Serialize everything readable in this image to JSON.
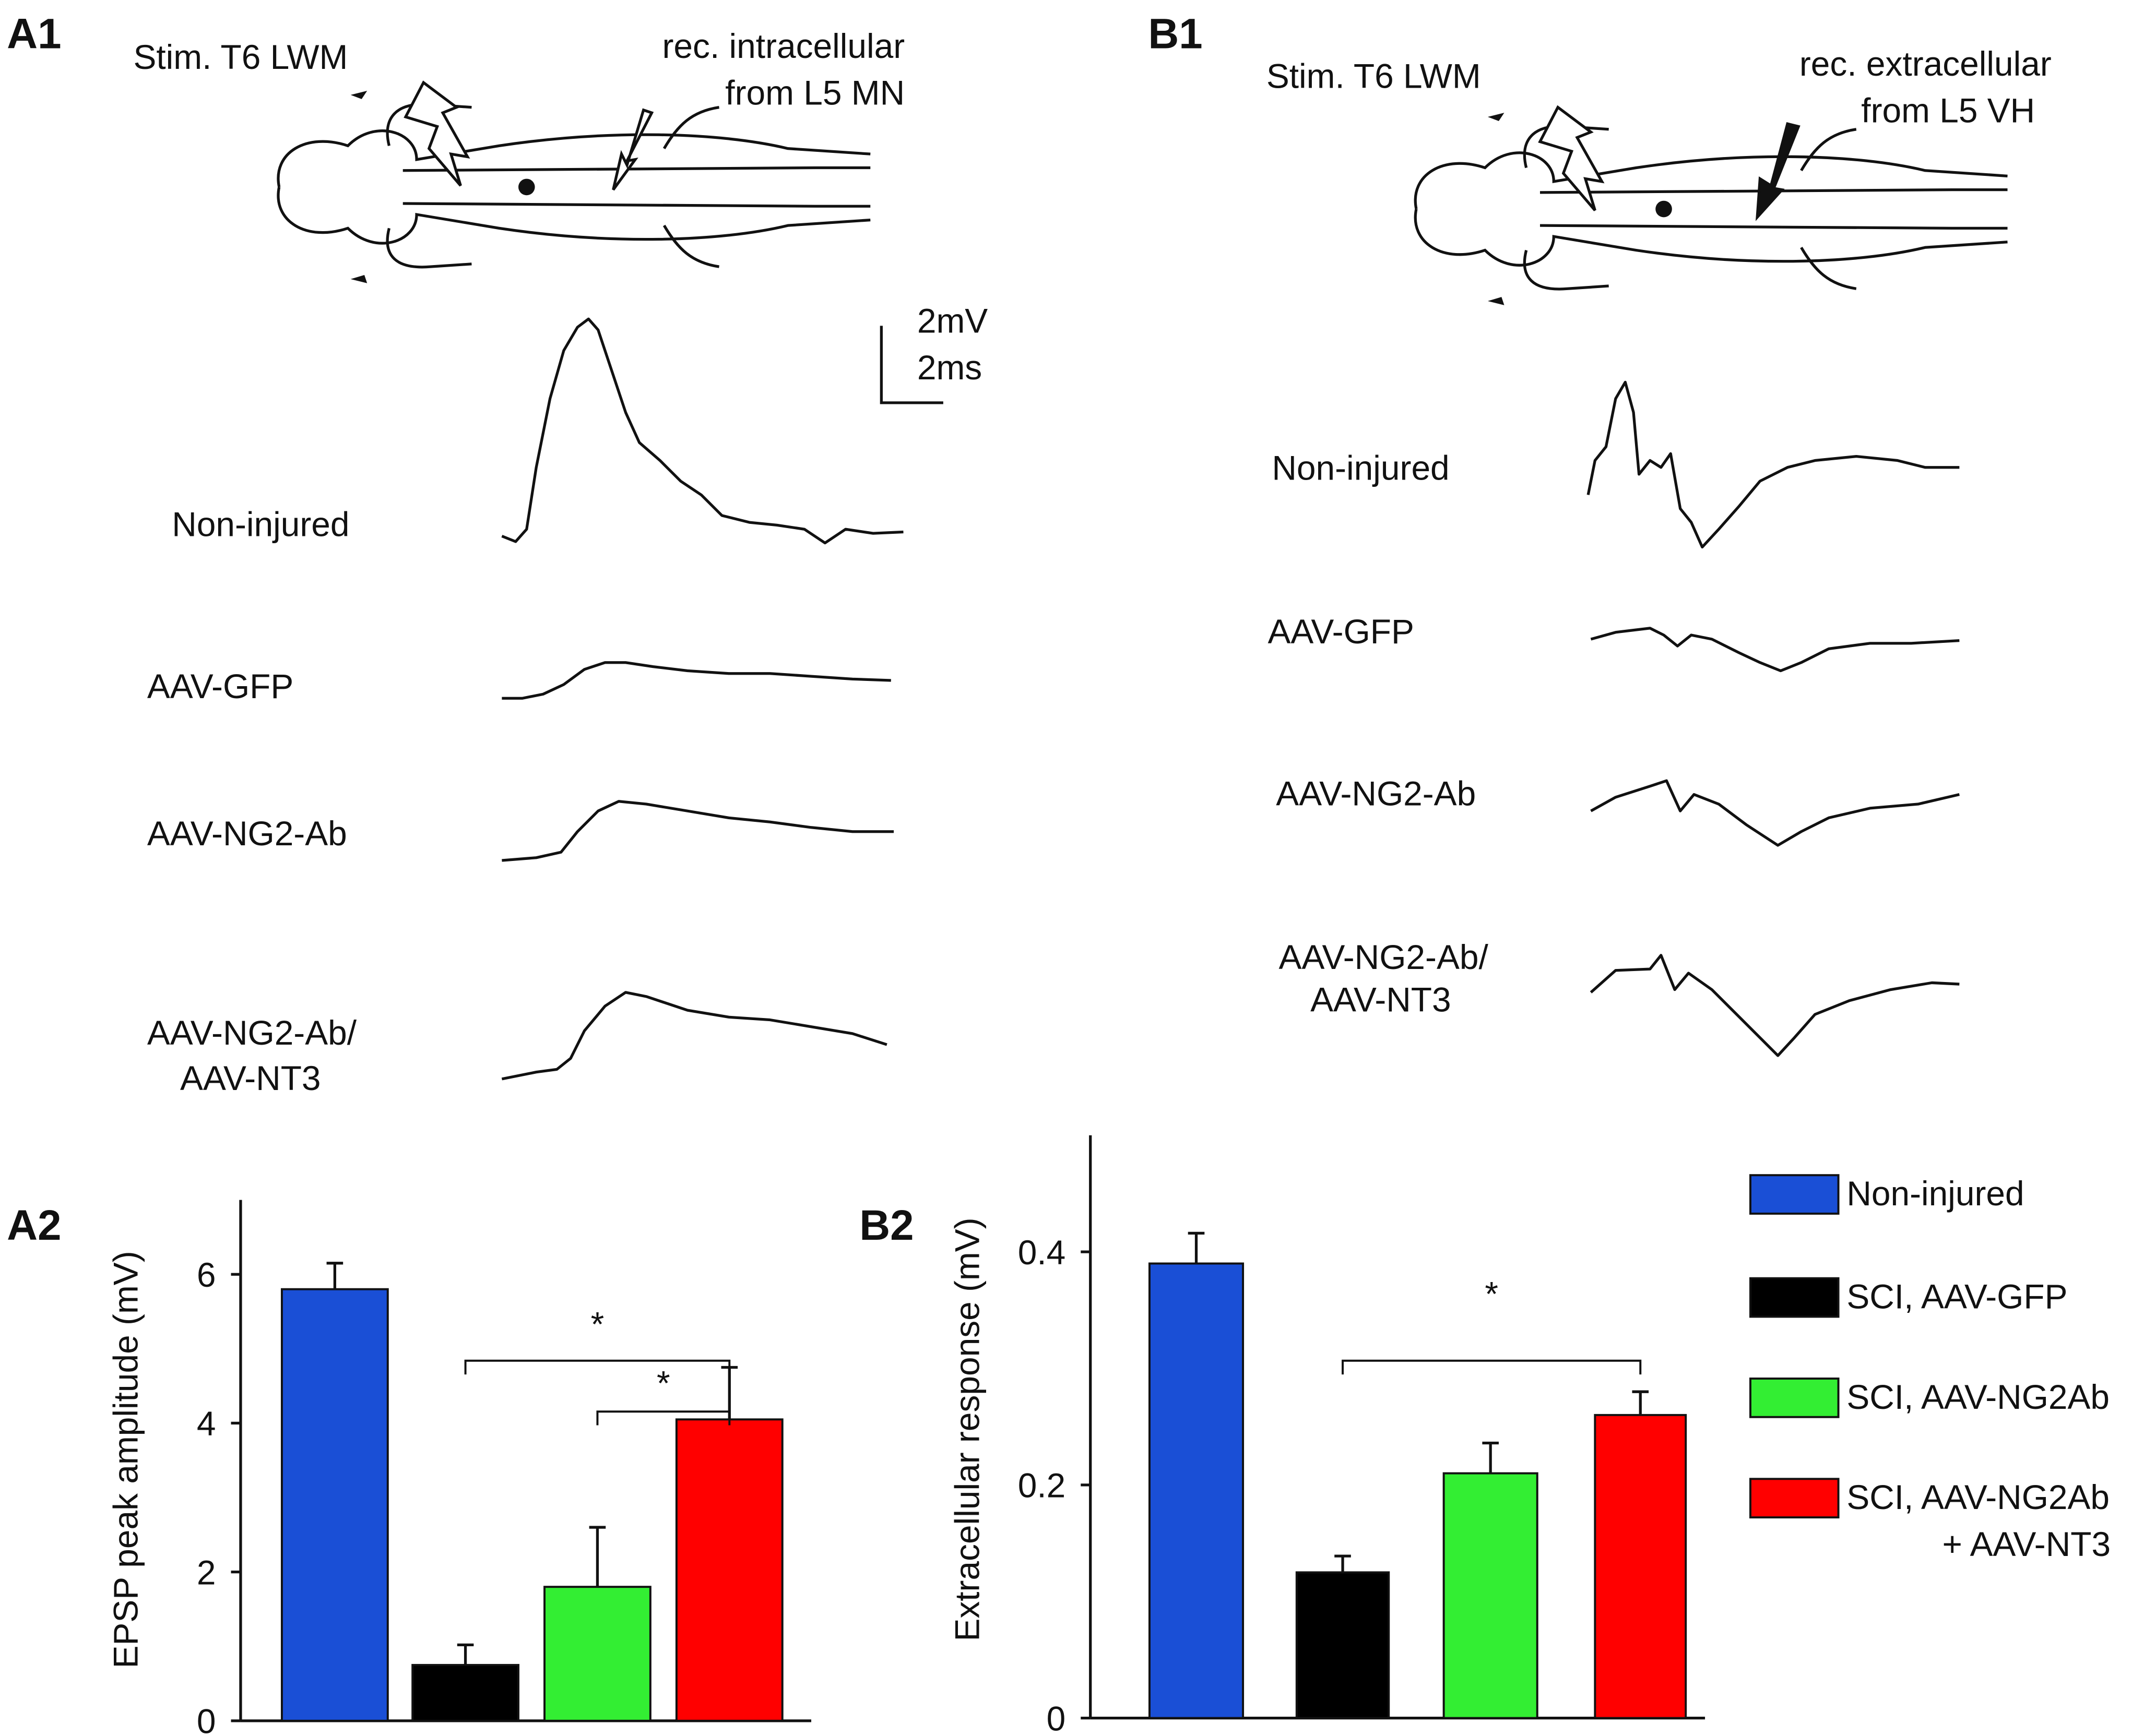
{
  "panels": {
    "a1": "A1",
    "b1": "B1",
    "a2": "A2",
    "b2": "B2"
  },
  "a1": {
    "stim": "Stim. T6 LWM",
    "rec": [
      "rec. intracellular",
      "from L5 MN"
    ],
    "scale": [
      "2mV",
      "2ms"
    ],
    "traces": [
      [
        "Non-injured"
      ],
      [
        "AAV-GFP"
      ],
      [
        "AAV-NG2-Ab"
      ],
      [
        "AAV-NG2-Ab/",
        "AAV-NT3"
      ]
    ]
  },
  "b1": {
    "stim": "Stim. T6 LWM",
    "rec": [
      "rec. extracellular",
      "from L5 VH"
    ],
    "traces": [
      [
        "Non-injured"
      ],
      [
        "AAV-GFP"
      ],
      [
        "AAV-NG2-Ab"
      ],
      [
        "AAV-NG2-Ab/",
        "AAV-NT3"
      ]
    ]
  },
  "legend": [
    {
      "name": [
        "Non-injured"
      ],
      "color": "#1a4fd6"
    },
    {
      "name": [
        "SCI, AAV-GFP"
      ],
      "color": "#000000"
    },
    {
      "name": [
        "SCI, AAV-NG2Ab"
      ],
      "color": "#33ee33"
    },
    {
      "name": [
        "SCI, AAV-NG2Ab",
        "+ AAV-NT3"
      ],
      "color": "#ff0000"
    }
  ],
  "chart_data": [
    {
      "type": "bar",
      "y_label": "EPSP peak amplitude (mV)",
      "values": [
        5.8,
        0.75,
        1.8,
        4.05
      ],
      "errors": [
        0.35,
        0.27,
        0.8,
        0.7
      ],
      "ylim": [
        0,
        7
      ],
      "yticks": [
        0,
        2,
        4,
        6
      ],
      "brackets": [
        {
          "from": 1,
          "to": 3,
          "label": "*"
        },
        {
          "from": 2,
          "to": 3,
          "label": "*"
        }
      ]
    },
    {
      "type": "bar",
      "y_label": "Extracellular  response (mV)",
      "values": [
        0.39,
        0.125,
        0.21,
        0.26
      ],
      "errors": [
        0.026,
        0.014,
        0.026,
        0.02
      ],
      "ylim": [
        0,
        0.5
      ],
      "yticks": [
        0,
        0.2,
        0.4
      ],
      "brackets": [
        {
          "from": 1,
          "to": 3,
          "label": "*"
        }
      ]
    }
  ]
}
